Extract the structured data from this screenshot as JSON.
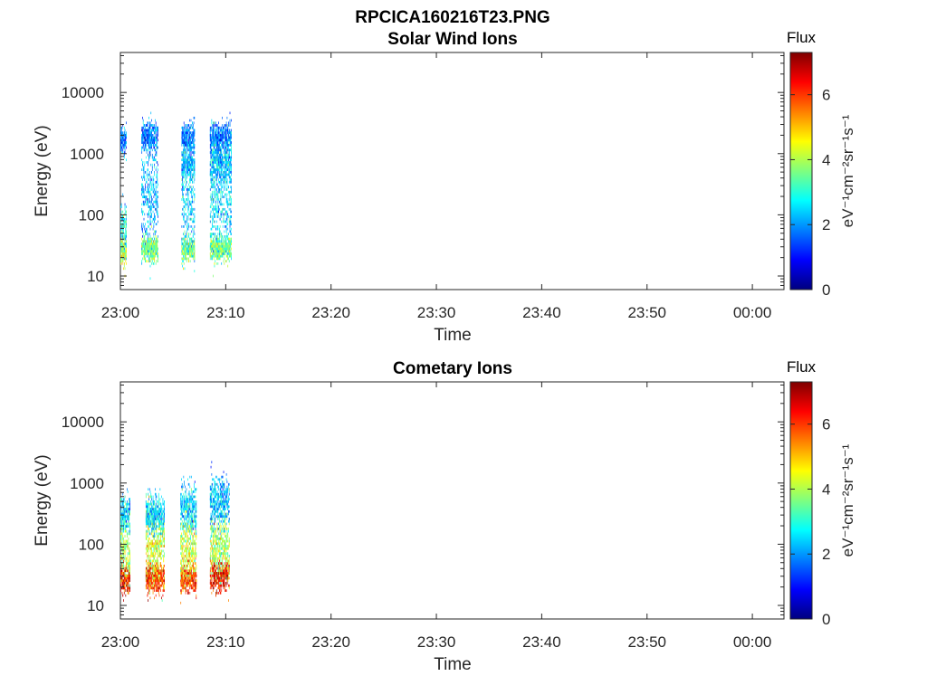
{
  "figure_title": "RPCICA160216T23.PNG",
  "colorbar_gradient": [
    "#00007f",
    "#0000ff",
    "#007fff",
    "#00ffff",
    "#7fff7f",
    "#ffff00",
    "#ff7f00",
    "#ff0000",
    "#7f0000"
  ],
  "chart_data": [
    {
      "type": "heatmap",
      "title": "Solar Wind Ions",
      "xlabel": "Time",
      "ylabel": "Energy (eV)",
      "x_ticks": [
        "23:00",
        "23:10",
        "23:20",
        "23:30",
        "23:40",
        "23:50",
        "00:00"
      ],
      "x_range": [
        "23:00",
        "00:03"
      ],
      "y_scale": "log",
      "y_ticks": [
        "10",
        "100",
        "1000",
        "10000"
      ],
      "y_range": [
        6,
        45000
      ],
      "colorbar": {
        "label_top": "Flux",
        "label_axis": "eV⁻¹cm⁻²sr⁻¹s⁻¹",
        "ticks": [
          "0",
          "2",
          "4",
          "6"
        ],
        "range": [
          0,
          7.3
        ],
        "colormap": "jet"
      },
      "bursts": [
        {
          "start_min": 0.0,
          "end_min": 0.6,
          "clusters": [
            {
              "e": 25,
              "flux": 4.0,
              "spread": 0.12
            },
            {
              "e": 60,
              "flux": 2.8,
              "spread": 0.18
            },
            {
              "e": 1600,
              "flux": 1.8,
              "spread": 0.1
            }
          ]
        },
        {
          "start_min": 2.0,
          "end_min": 3.6,
          "clusters": [
            {
              "e": 28,
              "flux": 3.6,
              "spread": 0.1
            },
            {
              "e": 200,
              "flux": 2.2,
              "spread": 0.4
            },
            {
              "e": 1800,
              "flux": 1.8,
              "spread": 0.12
            }
          ]
        },
        {
          "start_min": 5.8,
          "end_min": 7.0,
          "clusters": [
            {
              "e": 28,
              "flux": 3.6,
              "spread": 0.1
            },
            {
              "e": 150,
              "flux": 2.4,
              "spread": 0.4
            },
            {
              "e": 1800,
              "flux": 1.8,
              "spread": 0.12
            },
            {
              "e": 700,
              "flux": 2.2,
              "spread": 0.12
            }
          ]
        },
        {
          "start_min": 8.5,
          "end_min": 10.5,
          "clusters": [
            {
              "e": 28,
              "flux": 3.6,
              "spread": 0.1
            },
            {
              "e": 150,
              "flux": 2.5,
              "spread": 0.4
            },
            {
              "e": 1800,
              "flux": 1.8,
              "spread": 0.12
            },
            {
              "e": 700,
              "flux": 2.3,
              "spread": 0.15
            }
          ]
        }
      ]
    },
    {
      "type": "heatmap",
      "title": "Cometary Ions",
      "xlabel": "Time",
      "ylabel": "Energy (eV)",
      "x_ticks": [
        "23:00",
        "23:10",
        "23:20",
        "23:30",
        "23:40",
        "23:50",
        "00:00"
      ],
      "x_range": [
        "23:00",
        "00:03"
      ],
      "y_scale": "log",
      "y_ticks": [
        "10",
        "100",
        "1000",
        "10000"
      ],
      "y_range": [
        6,
        45000
      ],
      "colorbar": {
        "label_top": "Flux",
        "label_axis": "eV⁻¹cm⁻²sr⁻¹s⁻¹",
        "ticks": [
          "0",
          "2",
          "4",
          "6"
        ],
        "range": [
          0,
          7.3
        ],
        "colormap": "jet"
      },
      "bursts": [
        {
          "start_min": 0.0,
          "end_min": 0.9,
          "clusters": [
            {
              "e": 28,
              "flux": 6.2,
              "spread": 0.12
            },
            {
              "e": 80,
              "flux": 4.0,
              "spread": 0.25
            },
            {
              "e": 300,
              "flux": 2.5,
              "spread": 0.15
            }
          ]
        },
        {
          "start_min": 2.4,
          "end_min": 4.2,
          "clusters": [
            {
              "e": 28,
              "flux": 6.0,
              "spread": 0.12
            },
            {
              "e": 80,
              "flux": 4.2,
              "spread": 0.25
            },
            {
              "e": 300,
              "flux": 2.6,
              "spread": 0.15
            }
          ]
        },
        {
          "start_min": 5.7,
          "end_min": 7.2,
          "clusters": [
            {
              "e": 28,
              "flux": 6.0,
              "spread": 0.12
            },
            {
              "e": 80,
              "flux": 4.2,
              "spread": 0.25
            },
            {
              "e": 400,
              "flux": 2.4,
              "spread": 0.2
            }
          ]
        },
        {
          "start_min": 8.5,
          "end_min": 10.3,
          "clusters": [
            {
              "e": 30,
              "flux": 6.3,
              "spread": 0.12
            },
            {
              "e": 90,
              "flux": 4.0,
              "spread": 0.25
            },
            {
              "e": 500,
              "flux": 2.3,
              "spread": 0.2
            }
          ]
        }
      ]
    }
  ]
}
